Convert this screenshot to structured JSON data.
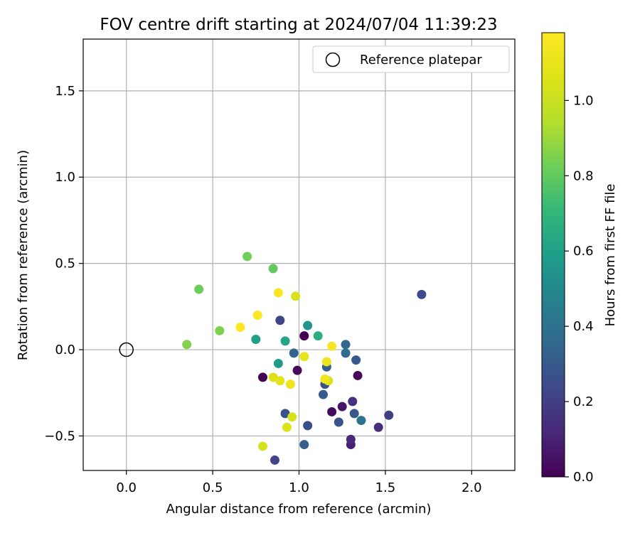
{
  "chart_data": {
    "type": "scatter",
    "title": "FOV centre drift starting at 2024/07/04 11:39:23",
    "xlabel": "Angular distance from reference (arcmin)",
    "ylabel": "Rotation from reference (arcmin)",
    "xlim": [
      -0.25,
      2.25
    ],
    "ylim": [
      -0.7,
      1.8
    ],
    "xticks": [
      0.0,
      0.5,
      1.0,
      1.5,
      2.0
    ],
    "xtick_labels": [
      "0.0",
      "0.5",
      "1.0",
      "1.5",
      "2.0"
    ],
    "yticks": [
      -0.5,
      0.0,
      0.5,
      1.0,
      1.5
    ],
    "ytick_labels": [
      "−0.5",
      "0.0",
      "0.5",
      "1.0",
      "1.5"
    ],
    "grid": true,
    "legend": {
      "location": "top-right",
      "entries": [
        "Reference platepar"
      ]
    },
    "reference_point": {
      "x": 0.0,
      "y": 0.0
    },
    "colorbar": {
      "label": "Hours from first FF file",
      "colormap": "viridis",
      "range": [
        0.0,
        1.18
      ],
      "ticks": [
        0.0,
        0.2,
        0.4,
        0.6,
        0.8,
        1.0
      ],
      "tick_labels": [
        "0.0",
        "0.2",
        "0.4",
        "0.6",
        "0.8",
        "1.0"
      ]
    },
    "points": [
      {
        "x": 0.79,
        "y": -0.16,
        "c": 0.0
      },
      {
        "x": 0.99,
        "y": -0.12,
        "c": 0.02
      },
      {
        "x": 1.03,
        "y": 0.08,
        "c": 0.0
      },
      {
        "x": 1.34,
        "y": -0.15,
        "c": 0.02
      },
      {
        "x": 1.19,
        "y": -0.36,
        "c": 0.03
      },
      {
        "x": 1.25,
        "y": -0.33,
        "c": 0.06
      },
      {
        "x": 1.3,
        "y": -0.55,
        "c": 0.1
      },
      {
        "x": 1.3,
        "y": -0.52,
        "c": 0.12
      },
      {
        "x": 1.46,
        "y": -0.45,
        "c": 0.14
      },
      {
        "x": 1.31,
        "y": -0.3,
        "c": 0.15
      },
      {
        "x": 1.52,
        "y": -0.38,
        "c": 0.2
      },
      {
        "x": 0.86,
        "y": -0.64,
        "c": 0.22
      },
      {
        "x": 0.89,
        "y": 0.17,
        "c": 0.22
      },
      {
        "x": 1.71,
        "y": 0.32,
        "c": 0.24
      },
      {
        "x": 1.05,
        "y": -0.44,
        "c": 0.26
      },
      {
        "x": 1.15,
        "y": -0.2,
        "c": 0.26
      },
      {
        "x": 1.23,
        "y": -0.42,
        "c": 0.27
      },
      {
        "x": 1.32,
        "y": -0.37,
        "c": 0.29
      },
      {
        "x": 0.92,
        "y": -0.37,
        "c": 0.27
      },
      {
        "x": 1.14,
        "y": -0.26,
        "c": 0.3
      },
      {
        "x": 1.33,
        "y": -0.06,
        "c": 0.3
      },
      {
        "x": 1.16,
        "y": -0.1,
        "c": 0.32
      },
      {
        "x": 1.03,
        "y": -0.55,
        "c": 0.32
      },
      {
        "x": 0.97,
        "y": -0.02,
        "c": 0.34
      },
      {
        "x": 1.27,
        "y": 0.03,
        "c": 0.35
      },
      {
        "x": 1.27,
        "y": -0.02,
        "c": 0.37
      },
      {
        "x": 1.36,
        "y": -0.41,
        "c": 0.4
      },
      {
        "x": 1.05,
        "y": 0.14,
        "c": 0.55
      },
      {
        "x": 0.88,
        "y": -0.08,
        "c": 0.58
      },
      {
        "x": 0.75,
        "y": 0.06,
        "c": 0.6
      },
      {
        "x": 0.92,
        "y": 0.05,
        "c": 0.62
      },
      {
        "x": 1.11,
        "y": 0.08,
        "c": 0.66
      },
      {
        "x": 0.85,
        "y": 0.47,
        "c": 0.8
      },
      {
        "x": 0.7,
        "y": 0.54,
        "c": 0.83
      },
      {
        "x": 0.54,
        "y": 0.11,
        "c": 0.85
      },
      {
        "x": 0.42,
        "y": 0.35,
        "c": 0.82
      },
      {
        "x": 0.35,
        "y": 0.03,
        "c": 0.86
      },
      {
        "x": 0.98,
        "y": 0.31,
        "c": 1.04
      },
      {
        "x": 0.85,
        "y": -0.16,
        "c": 1.05
      },
      {
        "x": 0.96,
        "y": -0.39,
        "c": 1.04
      },
      {
        "x": 0.93,
        "y": -0.45,
        "c": 1.06
      },
      {
        "x": 0.79,
        "y": -0.56,
        "c": 1.03
      },
      {
        "x": 1.17,
        "y": -0.18,
        "c": 1.05
      },
      {
        "x": 1.03,
        "y": -0.04,
        "c": 1.09
      },
      {
        "x": 0.89,
        "y": -0.18,
        "c": 1.08
      },
      {
        "x": 0.95,
        "y": -0.2,
        "c": 1.12
      },
      {
        "x": 1.16,
        "y": -0.07,
        "c": 1.12
      },
      {
        "x": 1.15,
        "y": -0.17,
        "c": 1.13
      },
      {
        "x": 1.19,
        "y": 0.02,
        "c": 1.16
      },
      {
        "x": 0.88,
        "y": 0.33,
        "c": 1.17
      },
      {
        "x": 0.76,
        "y": 0.2,
        "c": 1.17
      },
      {
        "x": 0.66,
        "y": 0.13,
        "c": 1.18
      }
    ]
  }
}
